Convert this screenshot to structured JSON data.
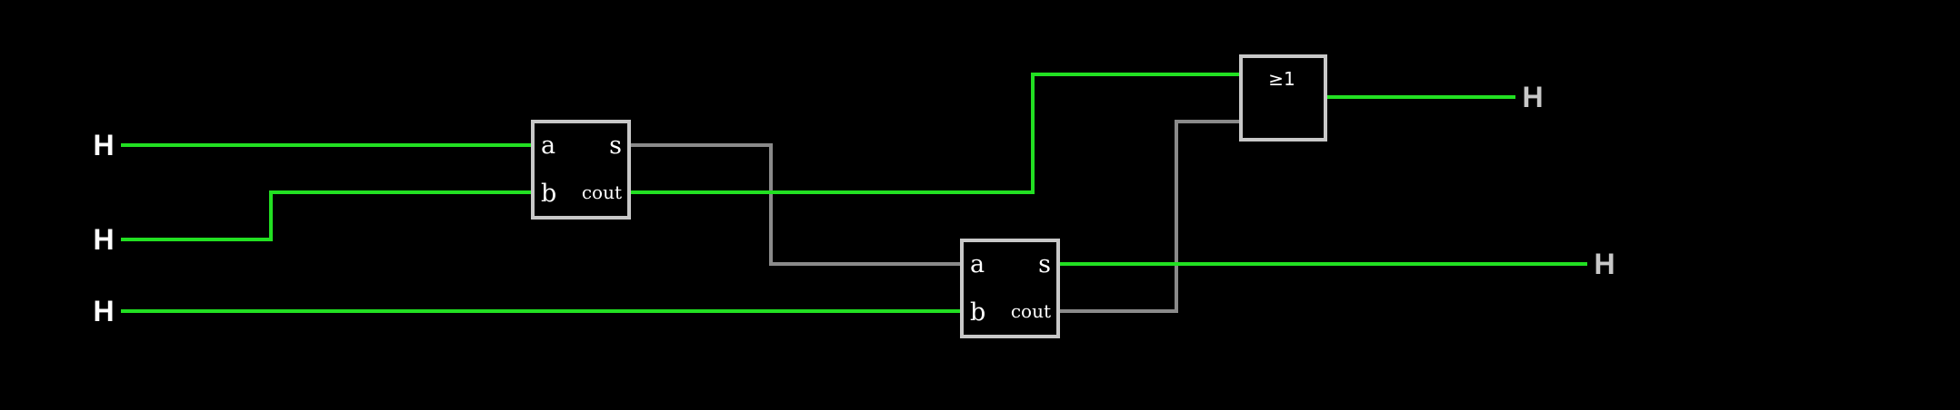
{
  "colors": {
    "background": "#000000",
    "active_wire": "#22e022",
    "inactive_wire": "#8a8a8a",
    "component_border": "#c8c8c8",
    "input_label": "#ffffff",
    "output_label": "#c8c8c8"
  },
  "inputs": [
    {
      "label": "H"
    },
    {
      "label": "H"
    },
    {
      "label": "H"
    }
  ],
  "outputs": [
    {
      "label": "H"
    },
    {
      "label": "H"
    }
  ],
  "adders": [
    {
      "pins": {
        "a": "a",
        "b": "b",
        "s": "s",
        "cout": "cout"
      }
    },
    {
      "pins": {
        "a": "a",
        "b": "b",
        "s": "s",
        "cout": "cout"
      }
    }
  ],
  "or_gate": {
    "symbol": "≥1"
  },
  "wires": [
    {
      "from": "input-1",
      "to": "adder-1.a",
      "state": "high"
    },
    {
      "from": "input-2",
      "to": "adder-1.b",
      "state": "high"
    },
    {
      "from": "input-3",
      "to": "adder-2.b",
      "state": "high"
    },
    {
      "from": "adder-1.s",
      "to": "adder-2.a",
      "state": "low"
    },
    {
      "from": "adder-1.cout",
      "to": "or-gate.in1",
      "state": "high"
    },
    {
      "from": "adder-2.cout",
      "to": "or-gate.in2",
      "state": "low"
    },
    {
      "from": "or-gate.out",
      "to": "output-1",
      "state": "high"
    },
    {
      "from": "adder-2.s",
      "to": "output-2",
      "state": "high"
    }
  ]
}
